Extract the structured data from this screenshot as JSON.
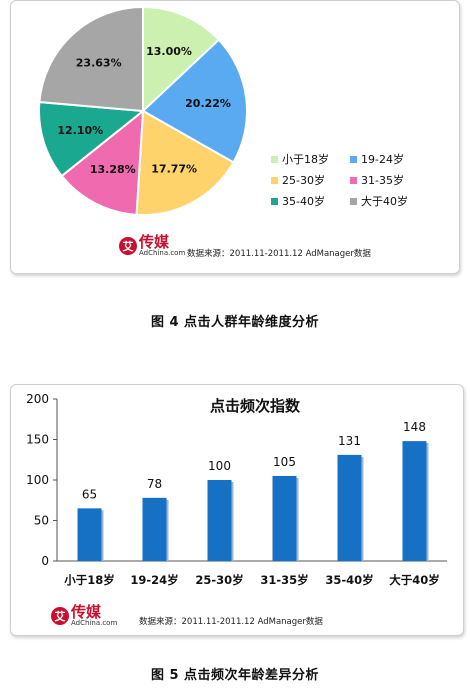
{
  "charts": {
    "pie": {
      "type": "pie",
      "categories": [
        "小于18岁",
        "19-24岁",
        "25-30岁",
        "31-35岁",
        "35-40岁",
        "大于40岁"
      ],
      "values": [
        13.0,
        20.22,
        17.77,
        13.28,
        12.1,
        23.63
      ],
      "labels": [
        "13.00%",
        "20.22%",
        "17.77%",
        "13.28%",
        "12.10%",
        "23.63%"
      ],
      "colors": [
        "#ccf0b0",
        "#5aaaf2",
        "#ffd36b",
        "#f06ab0",
        "#1aa890",
        "#a6a6a6"
      ],
      "legend_position": "right"
    },
    "bar": {
      "type": "bar",
      "title": "点击频次指数",
      "categories": [
        "小于18岁",
        "19-24岁",
        "25-30岁",
        "31-35岁",
        "35-40岁",
        "大于40岁"
      ],
      "values": [
        65,
        78,
        100,
        105,
        131,
        148
      ],
      "ylim": [
        0,
        200
      ],
      "yticks": [
        "0",
        "50",
        "100",
        "150",
        "200"
      ],
      "color": "#1670c4",
      "grid": false
    }
  },
  "chart_data": [
    {
      "type": "pie",
      "categories": [
        "小于18岁",
        "19-24岁",
        "25-30岁",
        "31-35岁",
        "35-40岁",
        "大于40岁"
      ],
      "values": [
        13.0,
        20.22,
        17.77,
        13.28,
        12.1,
        23.63
      ],
      "legend": "right"
    },
    {
      "type": "bar",
      "title": "点击频次指数",
      "categories": [
        "小于18岁",
        "19-24岁",
        "25-30岁",
        "31-35岁",
        "35-40岁",
        "大于40岁"
      ],
      "values": [
        65,
        78,
        100,
        105,
        131,
        148
      ],
      "ylim": [
        0,
        200
      ]
    }
  ],
  "logo": {
    "cn": "传媒",
    "en": "AdChina.com",
    "mark": "艾"
  },
  "source_text": "数据来源：2011.11-2011.12 AdManager数据",
  "captions": {
    "fig4": "图 4  点击人群年龄维度分析",
    "fig5": "图 5  点击频次年龄差异分析"
  }
}
